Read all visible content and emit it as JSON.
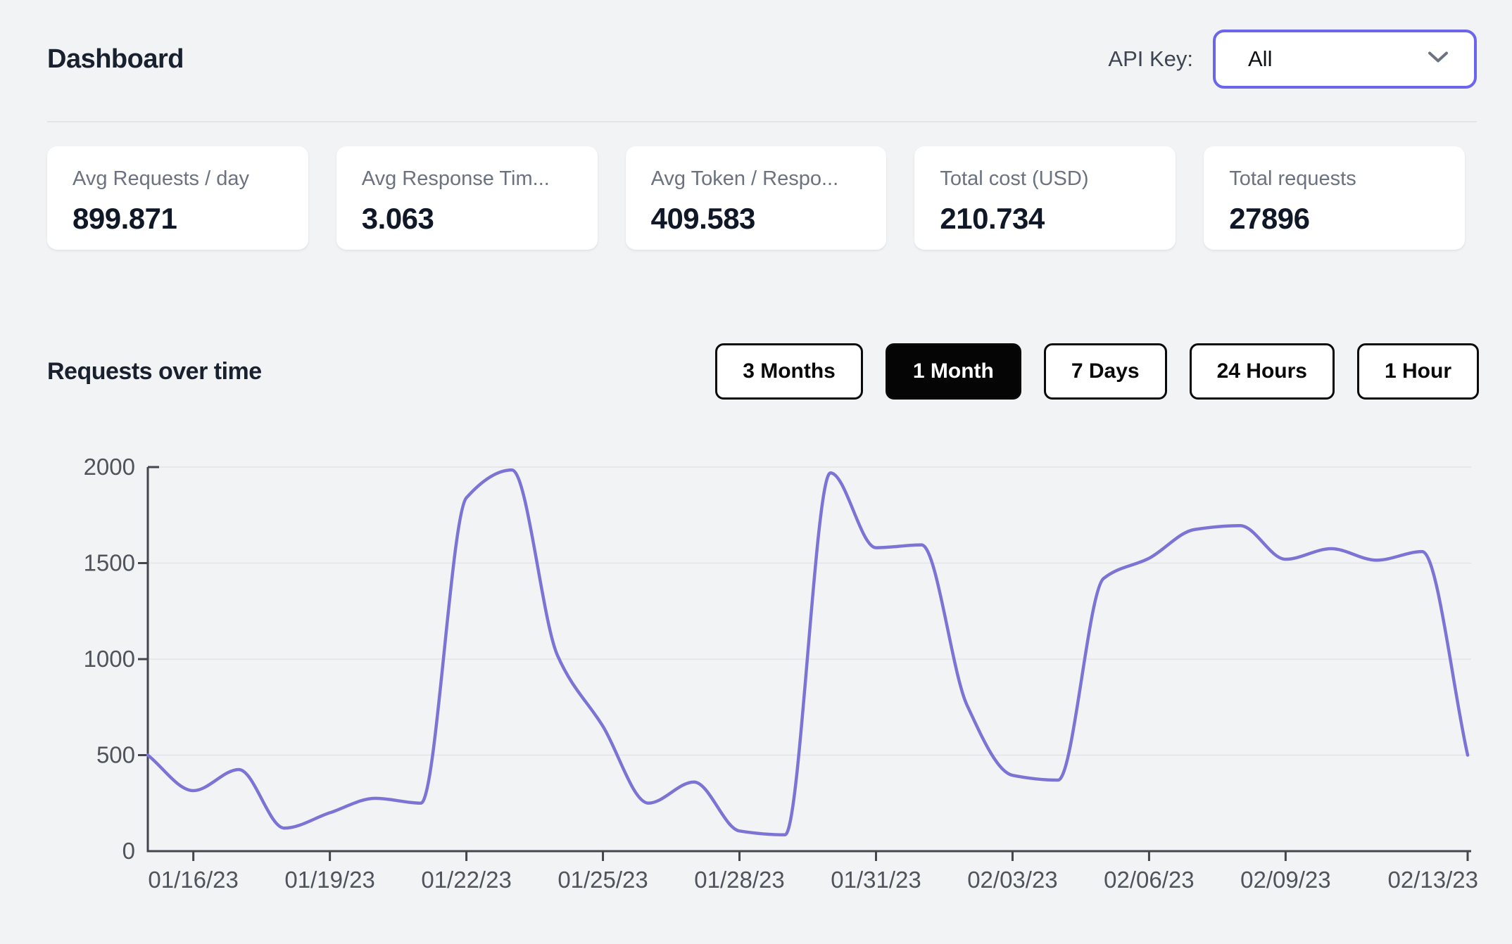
{
  "header": {
    "title": "Dashboard",
    "api_key_label": "API Key:",
    "api_key_value": "All"
  },
  "stats": [
    {
      "label": "Avg Requests / day",
      "value": "899.871"
    },
    {
      "label": "Avg Response Tim...",
      "value": "3.063"
    },
    {
      "label": "Avg Token / Respo...",
      "value": "409.583"
    },
    {
      "label": "Total cost (USD)",
      "value": "210.734"
    },
    {
      "label": "Total requests",
      "value": "27896"
    }
  ],
  "section": {
    "title": "Requests over time",
    "ranges": [
      {
        "label": "3 Months",
        "active": false
      },
      {
        "label": "1 Month",
        "active": true
      },
      {
        "label": "7 Days",
        "active": false
      },
      {
        "label": "24 Hours",
        "active": false
      },
      {
        "label": "1 Hour",
        "active": false
      }
    ]
  },
  "chart_data": {
    "type": "line",
    "title": "Requests over time",
    "x": [
      "01/15/23",
      "01/16/23",
      "01/17/23",
      "01/18/23",
      "01/19/23",
      "01/20/23",
      "01/21/23",
      "01/22/23",
      "01/23/23",
      "01/24/23",
      "01/25/23",
      "01/26/23",
      "01/27/23",
      "01/28/23",
      "01/29/23",
      "01/30/23",
      "01/31/23",
      "02/01/23",
      "02/02/23",
      "02/03/23",
      "02/04/23",
      "02/05/23",
      "02/06/23",
      "02/07/23",
      "02/08/23",
      "02/09/23",
      "02/10/23",
      "02/11/23",
      "02/12/23",
      "02/13/23"
    ],
    "values": [
      500,
      315,
      425,
      120,
      200,
      275,
      250,
      1840,
      1985,
      1020,
      650,
      250,
      360,
      105,
      85,
      1970,
      1580,
      1595,
      760,
      395,
      370,
      1420,
      1525,
      1675,
      1695,
      1520,
      1575,
      1515,
      1560,
      500
    ],
    "x_tick_labels": [
      "01/16/23",
      "01/19/23",
      "01/22/23",
      "01/25/23",
      "01/28/23",
      "01/31/23",
      "02/03/23",
      "02/06/23",
      "02/09/23",
      "02/13/23"
    ],
    "x_tick_indices": [
      1,
      4,
      7,
      10,
      13,
      16,
      19,
      22,
      25,
      29
    ],
    "y_ticks": [
      0,
      500,
      1000,
      1500,
      2000
    ],
    "ylim": [
      0,
      2000
    ],
    "grid": "horizontal",
    "legend": "none",
    "smooth": true,
    "line_color": "#7c74d5"
  },
  "colors": {
    "background": "#f1f3f5",
    "accent_select_border": "#6b65ee",
    "active_button_bg": "#050505",
    "line": "#7c74d5"
  }
}
